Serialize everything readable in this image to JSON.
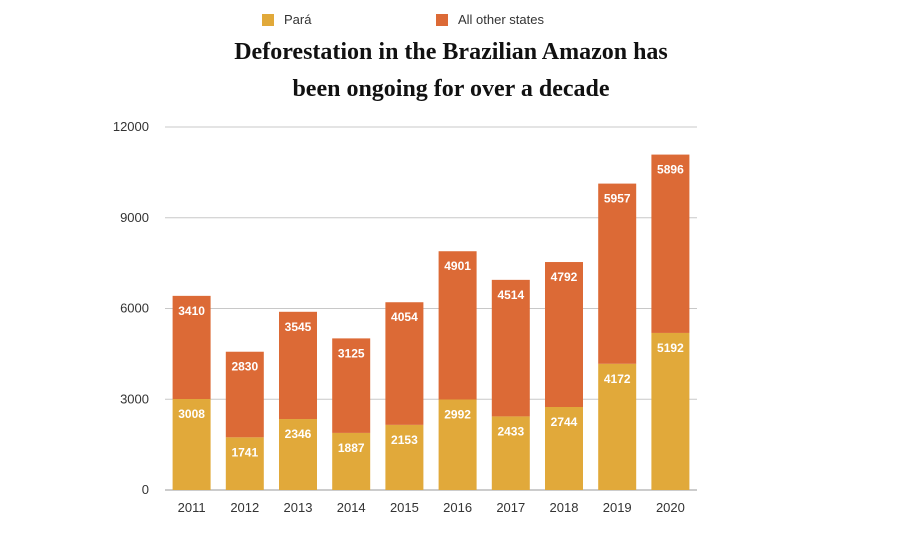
{
  "chart_data": {
    "type": "bar",
    "stacked": true,
    "title_lines": [
      "Deforestation in the Brazilian Amazon has",
      "been ongoing for over a decade"
    ],
    "categories": [
      "2011",
      "2012",
      "2013",
      "2014",
      "2015",
      "2016",
      "2017",
      "2018",
      "2019",
      "2020"
    ],
    "series": [
      {
        "name": "Pará",
        "color": "#E1A93A",
        "values": [
          3008,
          1741,
          2346,
          1887,
          2153,
          2992,
          2433,
          2744,
          4172,
          5192
        ]
      },
      {
        "name": "All other states",
        "color": "#DC6A36",
        "values": [
          3410,
          2830,
          3545,
          3125,
          4054,
          4901,
          4514,
          4792,
          5957,
          5896
        ]
      }
    ],
    "ylim": [
      0,
      12000
    ],
    "yticks": [
      "0",
      "3000",
      "6000",
      "9000",
      "12000"
    ],
    "grid": true,
    "legend_position": "top",
    "xlabel": "",
    "ylabel": ""
  }
}
